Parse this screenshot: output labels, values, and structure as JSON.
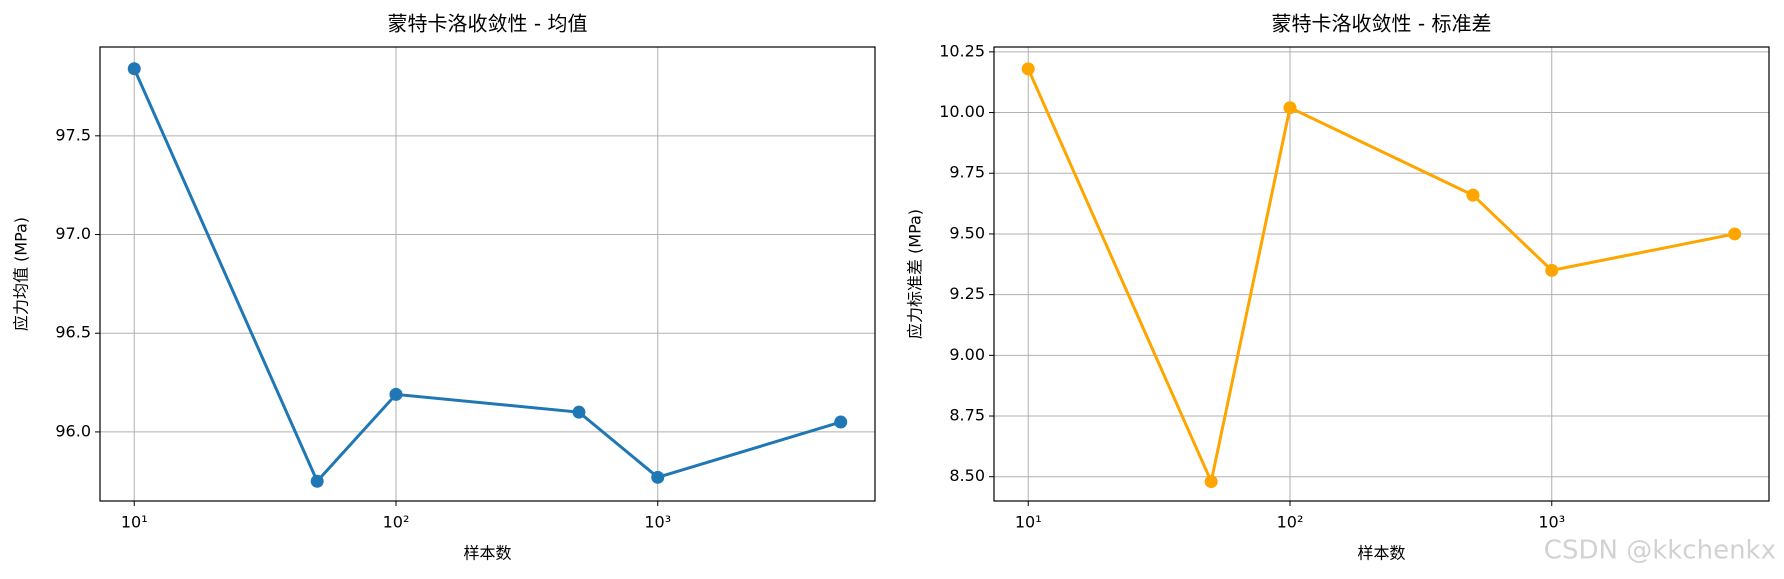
{
  "chart_data": [
    {
      "type": "line",
      "title": "蒙特卡洛收敛性 - 均值",
      "x_label": "样本数",
      "y_label": "应力均值 (MPa)",
      "x": [
        10,
        50,
        100,
        500,
        1000,
        5000
      ],
      "series": [
        {
          "name": "均值",
          "color": "#1f77b4",
          "values": [
            97.84,
            95.75,
            96.19,
            96.1,
            95.77,
            96.05
          ]
        }
      ],
      "x_log": true,
      "xlim": [
        7.4,
        6760
      ],
      "xticks": [
        {
          "value": 10,
          "label": "10¹"
        },
        {
          "value": 100,
          "label": "10²"
        },
        {
          "value": 1000,
          "label": "10³"
        }
      ],
      "ylim": [
        95.65,
        97.95
      ],
      "yticks": [
        {
          "value": 96,
          "label": "96.0"
        },
        96.5,
        {
          "value": 97,
          "label": "97.0"
        },
        97.5
      ],
      "grid": true
    },
    {
      "type": "line",
      "title": "蒙特卡洛收敛性 - 标准差",
      "x_label": "样本数",
      "y_label": "应力标准差 (MPa)",
      "x": [
        10,
        50,
        100,
        500,
        1000,
        5000
      ],
      "series": [
        {
          "name": "标准差",
          "color": "#ffa500",
          "values": [
            10.18,
            8.48,
            10.02,
            9.66,
            9.35,
            9.5
          ]
        }
      ],
      "x_log": true,
      "xlim": [
        7.4,
        6760
      ],
      "xticks": [
        {
          "value": 10,
          "label": "10¹"
        },
        {
          "value": 100,
          "label": "10²"
        },
        {
          "value": 1000,
          "label": "10³"
        }
      ],
      "ylim": [
        8.4,
        10.27
      ],
      "yticks": [
        {
          "value": 8.5,
          "label": "8.50"
        },
        8.75,
        {
          "value": 9,
          "label": "9.00"
        },
        9.25,
        {
          "value": 9.5,
          "label": "9.50"
        },
        9.75,
        {
          "value": 10,
          "label": "10.00"
        },
        10.25
      ],
      "grid": true
    }
  ],
  "watermark": "CSDN @kkchenkx"
}
